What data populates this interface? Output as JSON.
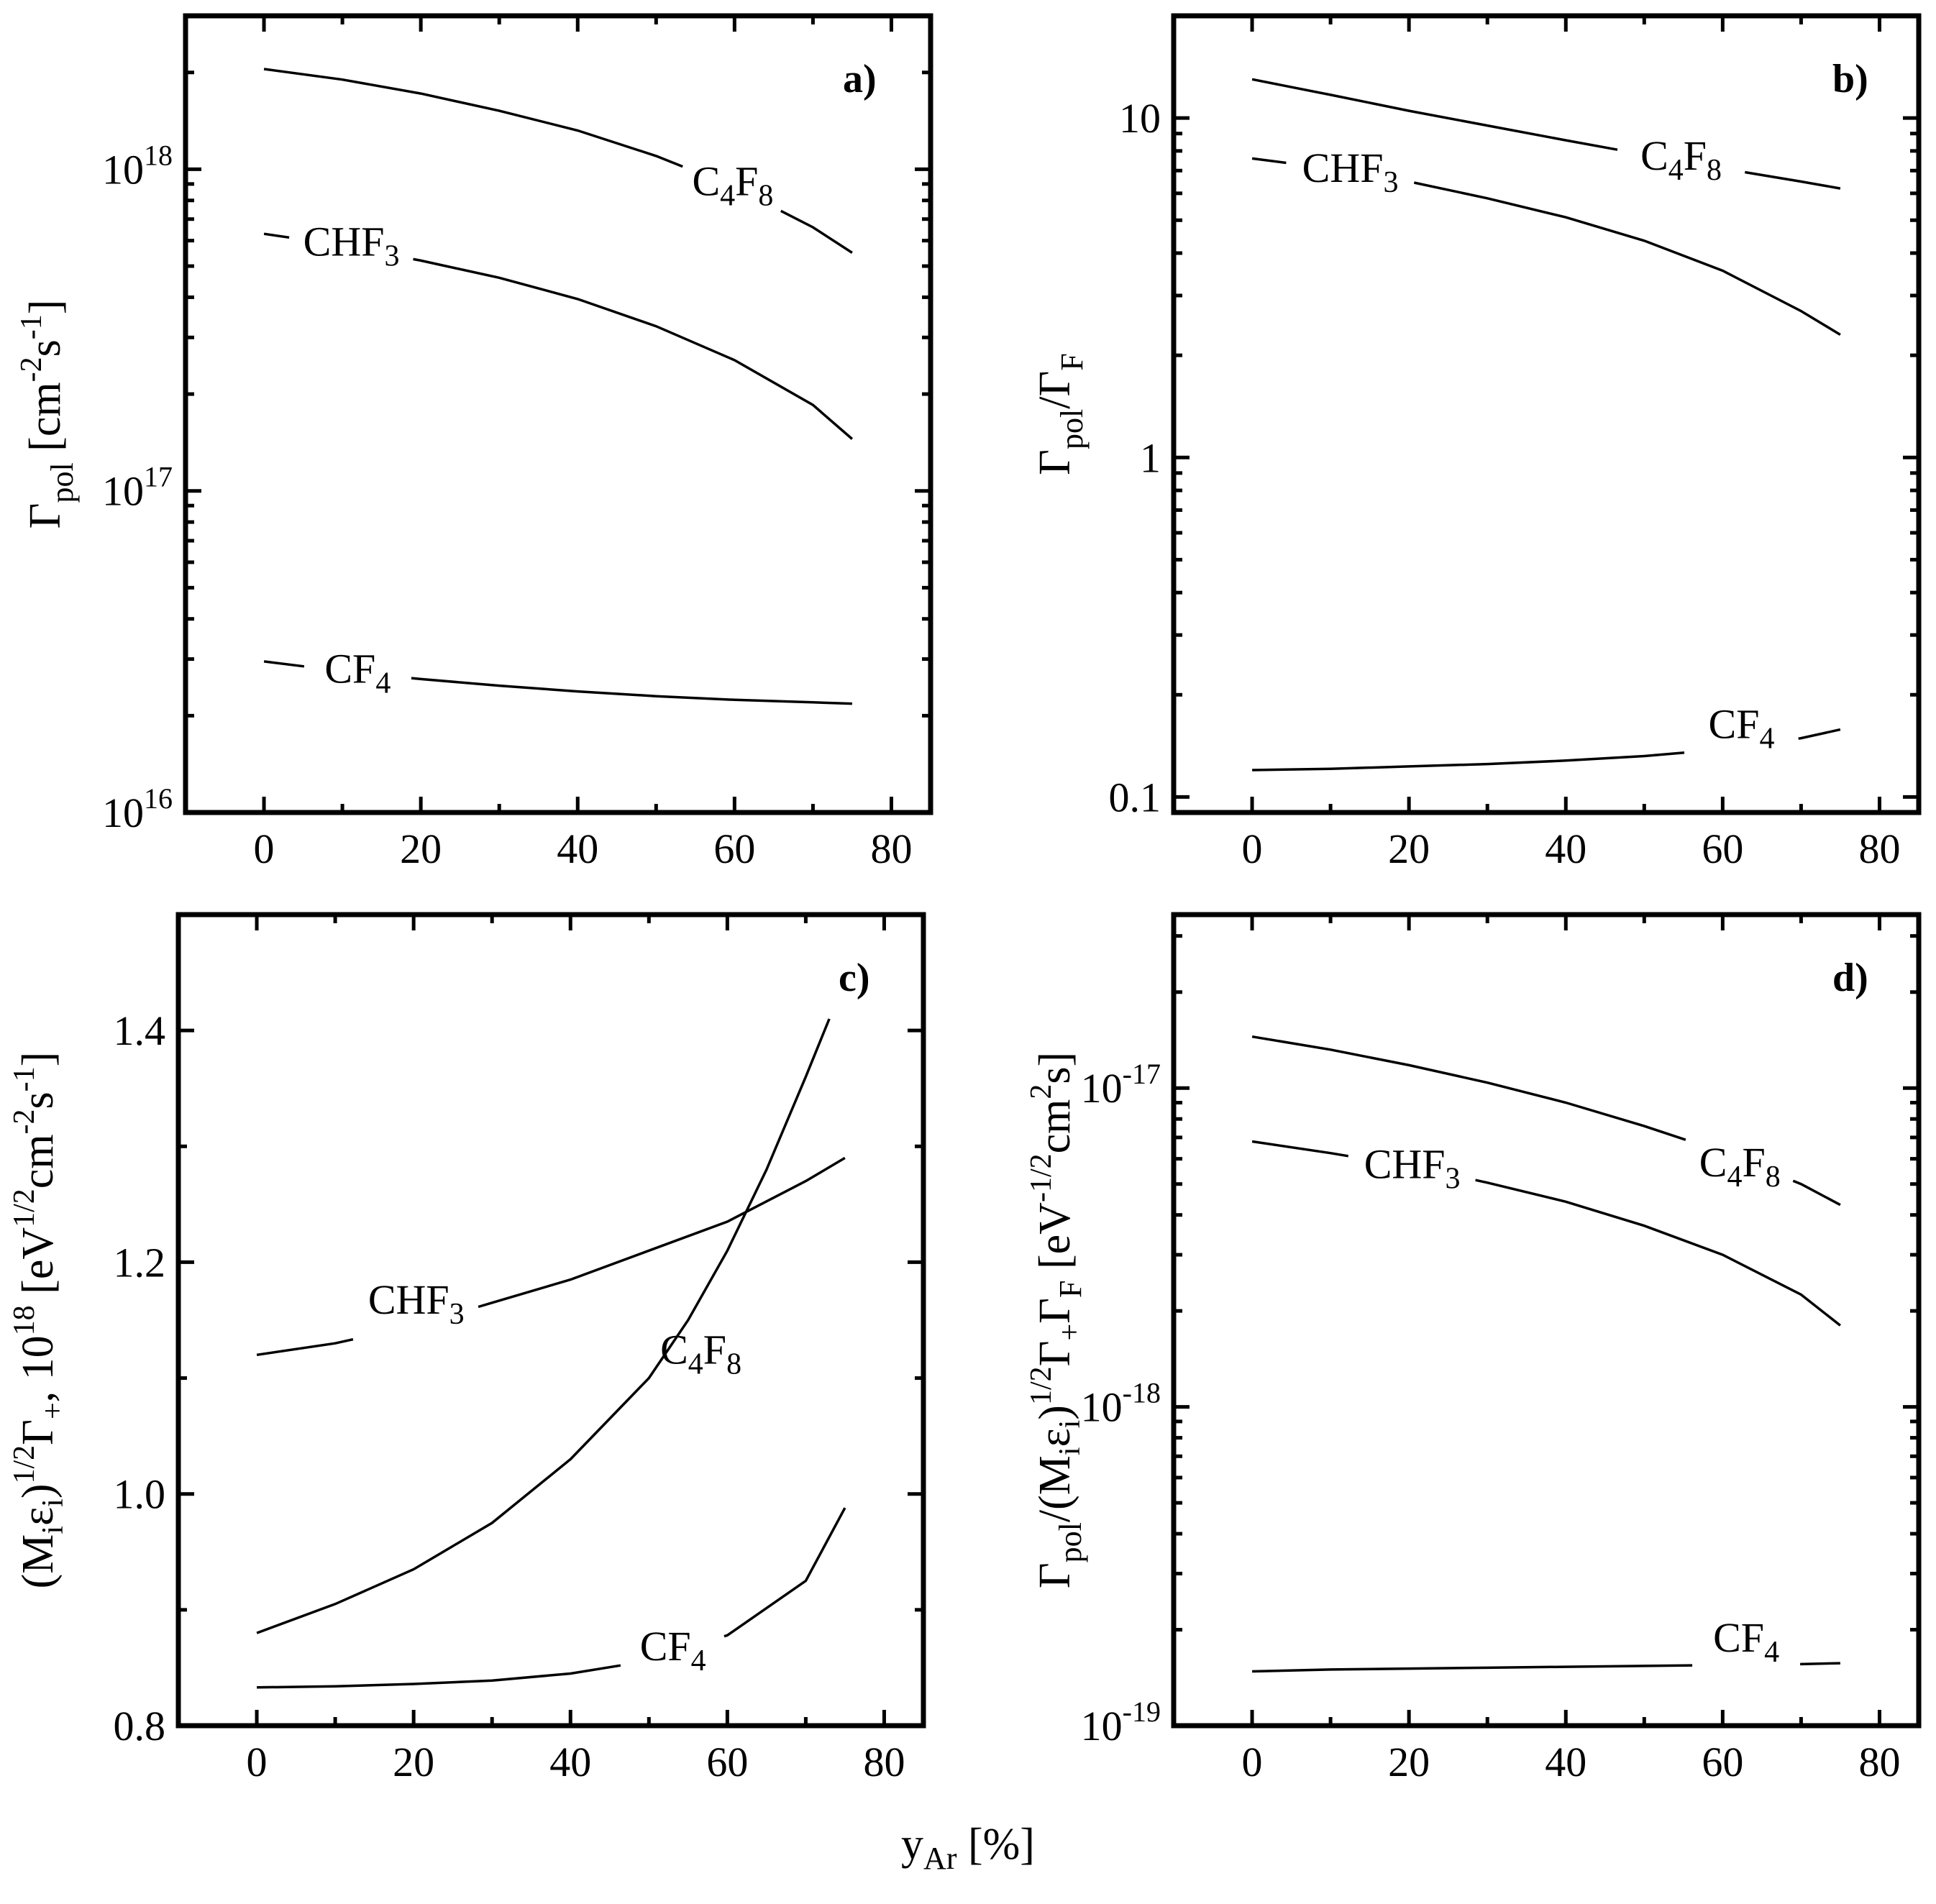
{
  "figure": {
    "shared_xlabel": {
      "main": "y",
      "sub": "Ar",
      "unit": " [%]"
    }
  },
  "chart_data": [
    {
      "id": "a",
      "type": "line",
      "panel_label": "a)",
      "title": "",
      "xlabel": "y_Ar [%]",
      "ylabel": "Γ_pol [cm^-2 s^-1]",
      "yscale": "log",
      "xlim": [
        -10,
        85
      ],
      "ylim": [
        1e+16,
        3e+18
      ],
      "xticks": [
        0,
        20,
        40,
        60,
        80
      ],
      "xtick_labels": [
        "0",
        "20",
        "40",
        "60",
        "80"
      ],
      "yticks": [
        1e+16,
        1e+17,
        1e+18
      ],
      "ytick_labels": [
        {
          "base": "10",
          "exp": "16"
        },
        {
          "base": "10",
          "exp": "17"
        },
        {
          "base": "10",
          "exp": "18"
        }
      ],
      "series": [
        {
          "name": "C4F8",
          "label": {
            "main": "C",
            "sub1": "4",
            "mid": "F",
            "sub2": "8"
          },
          "x": [
            0,
            10,
            20,
            30,
            40,
            50,
            60,
            70,
            75
          ],
          "y": [
            2.05e+18,
            1.9e+18,
            1.72e+18,
            1.52e+18,
            1.32e+18,
            1.1e+18,
            8.8e+17,
            6.6e+17,
            5.5e+17
          ]
        },
        {
          "name": "CHF3",
          "label": {
            "main": "CHF",
            "sub1": "3",
            "mid": "",
            "sub2": ""
          },
          "x": [
            0,
            10,
            20,
            30,
            40,
            50,
            60,
            70,
            75
          ],
          "y": [
            6.3e+17,
            5.8e+17,
            5.2e+17,
            4.6e+17,
            3.95e+17,
            3.25e+17,
            2.55e+17,
            1.85e+17,
            1.45e+17
          ]
        },
        {
          "name": "CF4",
          "label": {
            "main": "CF",
            "sub1": "4",
            "mid": "",
            "sub2": ""
          },
          "x": [
            0,
            10,
            20,
            30,
            40,
            50,
            60,
            70,
            75
          ],
          "y": [
            2.95e+16,
            2.75e+16,
            2.6e+16,
            2.48e+16,
            2.38e+16,
            2.3e+16,
            2.24e+16,
            2.2e+16,
            2.18e+16
          ]
        }
      ]
    },
    {
      "id": "b",
      "type": "line",
      "panel_label": "b)",
      "title": "",
      "xlabel": "y_Ar [%]",
      "ylabel": "Γ_pol/Γ_F",
      "yscale": "log",
      "xlim": [
        -10,
        85
      ],
      "ylim": [
        0.09,
        20
      ],
      "xticks": [
        0,
        20,
        40,
        60,
        80
      ],
      "xtick_labels": [
        "0",
        "20",
        "40",
        "60",
        "80"
      ],
      "yticks": [
        0.1,
        1,
        10
      ],
      "ytick_labels": [
        {
          "base": "0.1",
          "exp": ""
        },
        {
          "base": "1",
          "exp": ""
        },
        {
          "base": "10",
          "exp": ""
        }
      ],
      "series": [
        {
          "name": "C4F8",
          "label": {
            "main": "C",
            "sub1": "4",
            "mid": "F",
            "sub2": "8"
          },
          "x": [
            0,
            10,
            20,
            30,
            40,
            50,
            60,
            70,
            75
          ],
          "y": [
            13.0,
            11.7,
            10.5,
            9.5,
            8.6,
            7.8,
            7.1,
            6.5,
            6.2
          ]
        },
        {
          "name": "CHF3",
          "label": {
            "main": "CHF",
            "sub1": "3",
            "mid": "",
            "sub2": ""
          },
          "x": [
            0,
            10,
            20,
            30,
            40,
            50,
            60,
            70,
            75
          ],
          "y": [
            7.6,
            7.1,
            6.5,
            5.8,
            5.1,
            4.35,
            3.55,
            2.7,
            2.3
          ]
        },
        {
          "name": "CF4",
          "label": {
            "main": "CF",
            "sub1": "4",
            "mid": "",
            "sub2": ""
          },
          "x": [
            0,
            10,
            20,
            30,
            40,
            50,
            60,
            70,
            75
          ],
          "y": [
            0.12,
            0.121,
            0.123,
            0.125,
            0.128,
            0.132,
            0.138,
            0.149,
            0.158
          ]
        }
      ]
    },
    {
      "id": "c",
      "type": "line",
      "panel_label": "c)",
      "title": "",
      "xlabel": "y_Ar [%]",
      "ylabel": "(M_i ε_i)^1/2 Γ_+, 10^18 [eV^1/2 cm^-2 s^-1]",
      "yscale": "linear",
      "xlim": [
        -10,
        85
      ],
      "ylim": [
        0.8,
        1.5
      ],
      "xticks": [
        0,
        20,
        40,
        60,
        80
      ],
      "xtick_labels": [
        "0",
        "20",
        "40",
        "60",
        "80"
      ],
      "yticks": [
        0.8,
        1.0,
        1.2,
        1.4
      ],
      "ytick_labels": [
        {
          "base": "0.8",
          "exp": ""
        },
        {
          "base": "1.0",
          "exp": ""
        },
        {
          "base": "1.2",
          "exp": ""
        },
        {
          "base": "1.4",
          "exp": ""
        }
      ],
      "series": [
        {
          "name": "CHF3",
          "label": {
            "main": "CHF",
            "sub1": "3",
            "mid": "",
            "sub2": ""
          },
          "x": [
            0,
            10,
            20,
            30,
            40,
            50,
            60,
            70,
            75
          ],
          "y": [
            1.12,
            1.13,
            1.145,
            1.165,
            1.185,
            1.21,
            1.235,
            1.27,
            1.29
          ]
        },
        {
          "name": "C4F8",
          "label": {
            "main": "C",
            "sub1": "4",
            "mid": "F",
            "sub2": "8"
          },
          "x": [
            0,
            10,
            20,
            30,
            40,
            50,
            55,
            60,
            65,
            70,
            73
          ],
          "y": [
            0.88,
            0.905,
            0.935,
            0.975,
            1.03,
            1.1,
            1.15,
            1.21,
            1.28,
            1.36,
            1.41
          ]
        },
        {
          "name": "CF4",
          "label": {
            "main": "CF",
            "sub1": "4",
            "mid": "",
            "sub2": ""
          },
          "x": [
            0,
            10,
            20,
            30,
            40,
            50,
            60,
            70,
            75
          ],
          "y": [
            0.833,
            0.834,
            0.836,
            0.839,
            0.845,
            0.856,
            0.878,
            0.925,
            0.988
          ]
        }
      ]
    },
    {
      "id": "d",
      "type": "line",
      "panel_label": "d)",
      "title": "",
      "xlabel": "y_Ar [%]",
      "ylabel": "Γ_pol/(M_i ε_i)^1/2 Γ_+ Γ_F [eV^-1/2 cm^2 s]",
      "yscale": "log",
      "xlim": [
        -10,
        85
      ],
      "ylim": [
        1e-19,
        3.5e-17
      ],
      "xticks": [
        0,
        20,
        40,
        60,
        80
      ],
      "xtick_labels": [
        "0",
        "20",
        "40",
        "60",
        "80"
      ],
      "yticks": [
        1e-19,
        1e-18,
        1e-17
      ],
      "ytick_labels": [
        {
          "base": "10",
          "exp": "-19"
        },
        {
          "base": "10",
          "exp": "-18"
        },
        {
          "base": "10",
          "exp": "-17"
        }
      ],
      "series": [
        {
          "name": "C4F8",
          "label": {
            "main": "C",
            "sub1": "4",
            "mid": "F",
            "sub2": "8"
          },
          "x": [
            0,
            10,
            20,
            30,
            40,
            50,
            60,
            70,
            75
          ],
          "y": [
            1.45e-17,
            1.32e-17,
            1.18e-17,
            1.04e-17,
            9e-18,
            7.6e-18,
            6.3e-18,
            5e-18,
            4.3e-18
          ]
        },
        {
          "name": "CHF3",
          "label": {
            "main": "CHF",
            "sub1": "3",
            "mid": "",
            "sub2": ""
          },
          "x": [
            0,
            10,
            20,
            30,
            40,
            50,
            60,
            70,
            75
          ],
          "y": [
            6.8e-18,
            6.25e-18,
            5.7e-18,
            5.05e-18,
            4.4e-18,
            3.7e-18,
            3e-18,
            2.25e-18,
            1.8e-18
          ]
        },
        {
          "name": "CF4",
          "label": {
            "main": "CF",
            "sub1": "4",
            "mid": "",
            "sub2": ""
          },
          "x": [
            0,
            10,
            20,
            30,
            40,
            50,
            60,
            70,
            75
          ],
          "y": [
            1.48e-19,
            1.5e-19,
            1.51e-19,
            1.52e-19,
            1.53e-19,
            1.54e-19,
            1.55e-19,
            1.56e-19,
            1.57e-19
          ]
        }
      ]
    }
  ]
}
